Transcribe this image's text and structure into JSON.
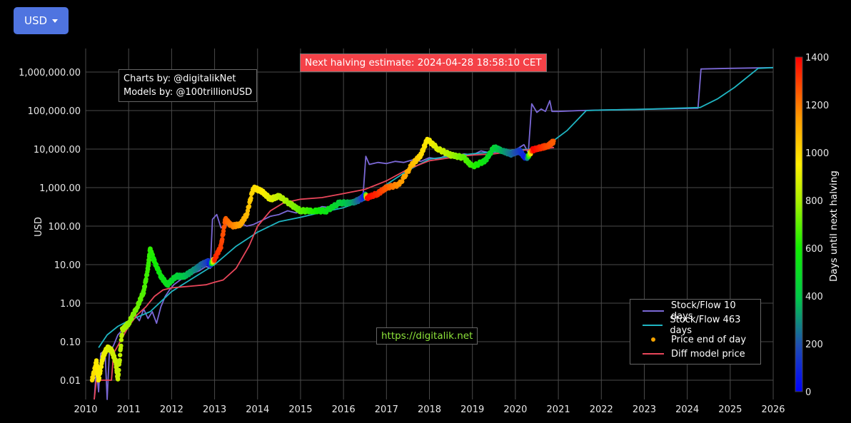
{
  "currency_selector": {
    "label": "USD",
    "icon": "caret-down-icon"
  },
  "annotations": {
    "credits_line1": "Charts by: @digitalikNet",
    "credits_line2": "Models by: @100trillionUSD",
    "halving": "Next halving estimate: 2024-04-28 18:58:10 CET",
    "url": "https://digitalik.net"
  },
  "legend": {
    "items": [
      {
        "label": "Stock/Flow 10 days",
        "color": "#7b68d6",
        "kind": "line"
      },
      {
        "label": "Stock/Flow 463 days",
        "color": "#1fb5c2",
        "kind": "line"
      },
      {
        "label": "Price end of day",
        "color": "#f5a300",
        "kind": "marker"
      },
      {
        "label": "Diff model price",
        "color": "#e8465a",
        "kind": "line"
      }
    ]
  },
  "colorbar": {
    "title": "Days until next halving",
    "ticks": [
      "1400",
      "1200",
      "1000",
      "800",
      "600",
      "400",
      "200",
      "0"
    ]
  },
  "colors": {
    "background": "#000000",
    "grid": "#555555",
    "button": "#4f74e0",
    "halving_bg": "#f44248",
    "url_text": "#8ee43a"
  },
  "chart_data": {
    "type": "line",
    "title": "",
    "xlabel": "",
    "ylabel": "USD",
    "yscale": "log",
    "ylim": [
      0.003,
      3000000
    ],
    "xlim": [
      2010,
      2026
    ],
    "grid": true,
    "legend_position": "bottom-right inside",
    "x_ticks": [
      "2010",
      "2011",
      "2012",
      "2013",
      "2014",
      "2015",
      "2016",
      "2017",
      "2018",
      "2019",
      "2020",
      "2021",
      "2022",
      "2023",
      "2024",
      "2025",
      "2026"
    ],
    "y_ticks": [
      "0.01",
      "0.10",
      "1.00",
      "10.00",
      "100.00",
      "1,000.00",
      "10,000.00",
      "100,000.00",
      "1,000,000.00"
    ],
    "series": [
      {
        "name": "Stock/Flow 10 days",
        "color": "#7b68d6",
        "points": [
          [
            2010.2,
            0.003
          ],
          [
            2010.25,
            0.02
          ],
          [
            2010.3,
            0.005
          ],
          [
            2010.35,
            0.05
          ],
          [
            2010.45,
            0.06
          ],
          [
            2010.5,
            0.003
          ],
          [
            2010.55,
            0.05
          ],
          [
            2010.65,
            0.08
          ],
          [
            2010.75,
            0.15
          ],
          [
            2010.85,
            0.2
          ],
          [
            2010.95,
            0.3
          ],
          [
            2011.05,
            0.4
          ],
          [
            2011.15,
            0.5
          ],
          [
            2011.25,
            0.35
          ],
          [
            2011.35,
            0.7
          ],
          [
            2011.45,
            0.4
          ],
          [
            2011.55,
            0.6
          ],
          [
            2011.65,
            0.3
          ],
          [
            2011.75,
            0.8
          ],
          [
            2011.85,
            1.5
          ],
          [
            2011.95,
            2.2
          ],
          [
            2012.05,
            3
          ],
          [
            2012.2,
            4
          ],
          [
            2012.35,
            5
          ],
          [
            2012.5,
            6
          ],
          [
            2012.65,
            7
          ],
          [
            2012.8,
            9
          ],
          [
            2012.9,
            8
          ],
          [
            2012.95,
            150
          ],
          [
            2013.05,
            200
          ],
          [
            2013.15,
            90
          ],
          [
            2013.3,
            110
          ],
          [
            2013.45,
            90
          ],
          [
            2013.6,
            120
          ],
          [
            2013.75,
            100
          ],
          [
            2013.9,
            110
          ],
          [
            2014.1,
            140
          ],
          [
            2014.3,
            180
          ],
          [
            2014.5,
            200
          ],
          [
            2014.7,
            250
          ],
          [
            2014.9,
            220
          ],
          [
            2015.1,
            280
          ],
          [
            2015.3,
            250
          ],
          [
            2015.5,
            320
          ],
          [
            2015.7,
            300
          ],
          [
            2015.9,
            380
          ],
          [
            2016.1,
            350
          ],
          [
            2016.3,
            450
          ],
          [
            2016.45,
            500
          ],
          [
            2016.52,
            6500
          ],
          [
            2016.6,
            4000
          ],
          [
            2016.8,
            4500
          ],
          [
            2017.0,
            4200
          ],
          [
            2017.2,
            4800
          ],
          [
            2017.4,
            4500
          ],
          [
            2017.6,
            5200
          ],
          [
            2017.8,
            4800
          ],
          [
            2018.0,
            6000
          ],
          [
            2018.2,
            5500
          ],
          [
            2018.4,
            7000
          ],
          [
            2018.6,
            6500
          ],
          [
            2018.8,
            7500
          ],
          [
            2019.0,
            7000
          ],
          [
            2019.2,
            9000
          ],
          [
            2019.4,
            8000
          ],
          [
            2019.6,
            8500
          ],
          [
            2019.8,
            9000
          ],
          [
            2020.0,
            9500
          ],
          [
            2020.2,
            13000
          ],
          [
            2020.3,
            8000
          ],
          [
            2020.38,
            150000
          ],
          [
            2020.5,
            90000
          ],
          [
            2020.6,
            110000
          ],
          [
            2020.7,
            95000
          ],
          [
            2020.8,
            180000
          ],
          [
            2020.85,
            95000
          ],
          [
            2021.0,
            95000
          ],
          [
            2021.5,
            100000
          ],
          [
            2022,
            103000
          ],
          [
            2023,
            108000
          ],
          [
            2024.25,
            115000
          ],
          [
            2024.32,
            1200000
          ],
          [
            2025,
            1250000
          ],
          [
            2026,
            1300000
          ]
        ]
      },
      {
        "name": "Stock/Flow 463 days",
        "color": "#1fb5c2",
        "points": [
          [
            2010.3,
            0.07
          ],
          [
            2010.5,
            0.15
          ],
          [
            2010.75,
            0.25
          ],
          [
            2011.0,
            0.35
          ],
          [
            2011.5,
            0.6
          ],
          [
            2012.0,
            2
          ],
          [
            2012.5,
            4.5
          ],
          [
            2013.0,
            10
          ],
          [
            2013.5,
            30
          ],
          [
            2014.0,
            70
          ],
          [
            2014.5,
            130
          ],
          [
            2015.0,
            170
          ],
          [
            2015.5,
            230
          ],
          [
            2016.0,
            300
          ],
          [
            2016.5,
            480
          ],
          [
            2017.0,
            1200
          ],
          [
            2017.5,
            2800
          ],
          [
            2018.0,
            5500
          ],
          [
            2018.5,
            6500
          ],
          [
            2019.0,
            7500
          ],
          [
            2019.5,
            8500
          ],
          [
            2020.0,
            9500
          ],
          [
            2020.4,
            10000
          ],
          [
            2020.8,
            14000
          ],
          [
            2021.2,
            30000
          ],
          [
            2021.65,
            100000
          ],
          [
            2022,
            103000
          ],
          [
            2023,
            108000
          ],
          [
            2024.3,
            120000
          ],
          [
            2024.7,
            200000
          ],
          [
            2025.1,
            400000
          ],
          [
            2025.65,
            1250000
          ],
          [
            2026,
            1300000
          ]
        ]
      },
      {
        "name": "Diff model price",
        "color": "#e8465a",
        "points": [
          [
            2010.2,
            0.003
          ],
          [
            2010.25,
            0.01
          ],
          [
            2010.6,
            0.01
          ],
          [
            2010.65,
            0.05
          ],
          [
            2010.8,
            0.1
          ],
          [
            2011.0,
            0.25
          ],
          [
            2011.2,
            0.5
          ],
          [
            2011.4,
            0.8
          ],
          [
            2011.6,
            1.5
          ],
          [
            2011.8,
            2.2
          ],
          [
            2012.0,
            2.5
          ],
          [
            2012.5,
            2.8
          ],
          [
            2012.8,
            3
          ],
          [
            2013.0,
            3.5
          ],
          [
            2013.2,
            4
          ],
          [
            2013.5,
            8
          ],
          [
            2013.8,
            30
          ],
          [
            2014.0,
            100
          ],
          [
            2014.3,
            250
          ],
          [
            2014.6,
            400
          ],
          [
            2015.0,
            500
          ],
          [
            2015.5,
            550
          ],
          [
            2016.0,
            700
          ],
          [
            2016.5,
            900
          ],
          [
            2017.0,
            1500
          ],
          [
            2017.5,
            3000
          ],
          [
            2018.0,
            5000
          ],
          [
            2018.5,
            6000
          ],
          [
            2019.0,
            7000
          ],
          [
            2019.5,
            7500
          ],
          [
            2020.0,
            9000
          ],
          [
            2020.5,
            10000
          ],
          [
            2020.9,
            11000
          ]
        ]
      },
      {
        "name": "Price end of day",
        "kind": "markers",
        "colorscale": "days until next halving (0 blue → 1400 red)",
        "points": [
          [
            2010.15,
            0.01,
            1000
          ],
          [
            2010.25,
            0.03,
            960
          ],
          [
            2010.3,
            0.01,
            950
          ],
          [
            2010.4,
            0.04,
            930
          ],
          [
            2010.5,
            0.07,
            900
          ],
          [
            2010.6,
            0.06,
            880
          ],
          [
            2010.7,
            0.03,
            860
          ],
          [
            2010.75,
            0.01,
            850
          ],
          [
            2010.85,
            0.2,
            820
          ],
          [
            2011.0,
            0.3,
            780
          ],
          [
            2011.2,
            0.8,
            720
          ],
          [
            2011.35,
            2,
            680
          ],
          [
            2011.45,
            8,
            650
          ],
          [
            2011.5,
            25,
            640
          ],
          [
            2011.6,
            12,
            600
          ],
          [
            2011.75,
            5,
            560
          ],
          [
            2011.9,
            3,
            520
          ],
          [
            2012.1,
            5,
            460
          ],
          [
            2012.3,
            5,
            400
          ],
          [
            2012.5,
            7,
            320
          ],
          [
            2012.7,
            10,
            240
          ],
          [
            2012.85,
            12,
            150
          ],
          [
            2012.9,
            10,
            50
          ],
          [
            2013.0,
            14,
            1350
          ],
          [
            2013.15,
            30,
            1300
          ],
          [
            2013.25,
            150,
            1250
          ],
          [
            2013.4,
            100,
            1200
          ],
          [
            2013.6,
            110,
            1130
          ],
          [
            2013.75,
            200,
            1080
          ],
          [
            2013.9,
            1000,
            1000
          ],
          [
            2014.1,
            800,
            960
          ],
          [
            2014.3,
            500,
            900
          ],
          [
            2014.5,
            600,
            840
          ],
          [
            2014.8,
            350,
            760
          ],
          [
            2015.0,
            250,
            700
          ],
          [
            2015.3,
            250,
            620
          ],
          [
            2015.6,
            250,
            540
          ],
          [
            2015.9,
            400,
            450
          ],
          [
            2016.2,
            400,
            340
          ],
          [
            2016.4,
            500,
            200
          ],
          [
            2016.5,
            650,
            40
          ],
          [
            2016.55,
            550,
            1400
          ],
          [
            2016.8,
            700,
            1330
          ],
          [
            2017.0,
            1000,
            1250
          ],
          [
            2017.3,
            1200,
            1160
          ],
          [
            2017.6,
            4000,
            1080
          ],
          [
            2017.8,
            7000,
            1000
          ],
          [
            2017.95,
            18000,
            960
          ],
          [
            2018.2,
            10000,
            880
          ],
          [
            2018.5,
            7000,
            800
          ],
          [
            2018.8,
            6000,
            700
          ],
          [
            2019.0,
            3500,
            640
          ],
          [
            2019.3,
            5000,
            540
          ],
          [
            2019.5,
            11000,
            460
          ],
          [
            2019.7,
            9000,
            350
          ],
          [
            2019.9,
            7500,
            250
          ],
          [
            2020.1,
            9000,
            150
          ],
          [
            2020.25,
            5500,
            50
          ],
          [
            2020.4,
            9500,
            1400
          ],
          [
            2020.6,
            11000,
            1330
          ],
          [
            2020.75,
            12000,
            1280
          ],
          [
            2020.9,
            16000,
            1250
          ]
        ]
      }
    ]
  }
}
